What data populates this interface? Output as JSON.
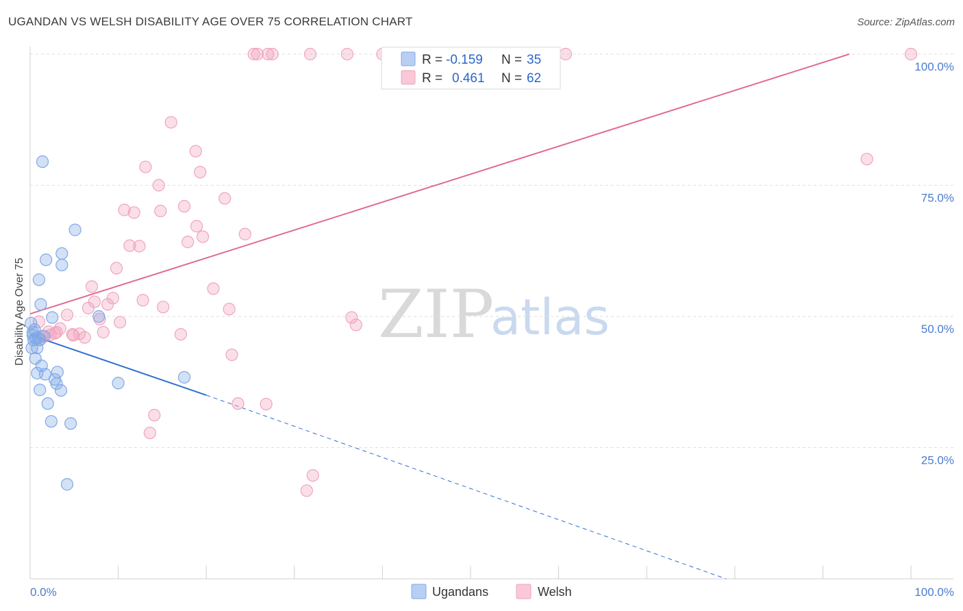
{
  "header": {
    "title": "UGANDAN VS WELSH DISABILITY AGE OVER 75 CORRELATION CHART",
    "source": "Source: ZipAtlas.com"
  },
  "colors": {
    "ugandans": "#7fa8e6",
    "ugandans_line": "#2f6fd1",
    "welsh": "#f1a3bd",
    "welsh_line": "#e16a94",
    "tick_text": "#4a7bd0",
    "grid": "#dedede"
  },
  "watermark": {
    "zip": "ZIP",
    "atlas": "atlas"
  },
  "stats": {
    "ugandans": {
      "r_label": "R =",
      "r_value": "-0.159",
      "n_label": "N =",
      "n_value": "35"
    },
    "welsh": {
      "r_label": "R =",
      "r_value": "0.461",
      "n_label": "N =",
      "n_value": "62"
    }
  },
  "legend": {
    "ugandans": "Ugandans",
    "welsh": "Welsh"
  },
  "chart_data": {
    "type": "scatter",
    "title": "UGANDAN VS WELSH DISABILITY AGE OVER 75 CORRELATION CHART",
    "xlabel": "",
    "ylabel": "Disability Age Over 75",
    "xlim": [
      0,
      100
    ],
    "ylim": [
      0,
      100
    ],
    "x_tick_labels": [
      "0.0%",
      "100.0%"
    ],
    "y_tick_labels": [
      "100.0%",
      "75.0%",
      "50.0%",
      "25.0%"
    ],
    "y_ticks": [
      100,
      75,
      50,
      25
    ],
    "grid": true,
    "series": [
      {
        "name": "Ugandans",
        "r": -0.159,
        "n": 35,
        "trend": {
          "x0": 0,
          "y0": 46.5,
          "x1": 20,
          "y1": 35.0,
          "dashed_to_x": 79,
          "dashed_to_y": 0
        },
        "points": [
          [
            1.4,
            79.5
          ],
          [
            5.1,
            66.5
          ],
          [
            3.6,
            62.0
          ],
          [
            1.8,
            60.8
          ],
          [
            3.6,
            59.8
          ],
          [
            1.0,
            57.0
          ],
          [
            1.2,
            52.3
          ],
          [
            2.5,
            49.8
          ],
          [
            7.8,
            50.0
          ],
          [
            0.1,
            48.7
          ],
          [
            0.5,
            47.5
          ],
          [
            0.3,
            46.4
          ],
          [
            0.6,
            45.8
          ],
          [
            1.1,
            45.6
          ],
          [
            0.9,
            45.9
          ],
          [
            0.2,
            44.0
          ],
          [
            0.8,
            44.0
          ],
          [
            0.6,
            42.0
          ],
          [
            1.3,
            40.6
          ],
          [
            0.8,
            39.2
          ],
          [
            1.7,
            39.0
          ],
          [
            3.1,
            39.4
          ],
          [
            2.8,
            38.0
          ],
          [
            3.0,
            37.2
          ],
          [
            17.5,
            38.4
          ],
          [
            10.0,
            37.3
          ],
          [
            1.1,
            36.0
          ],
          [
            3.5,
            35.9
          ],
          [
            2.0,
            33.4
          ],
          [
            2.4,
            30.0
          ],
          [
            4.6,
            29.6
          ],
          [
            4.2,
            18.0
          ],
          [
            0.3,
            47.0
          ],
          [
            1.6,
            46.2
          ],
          [
            0.4,
            45.5
          ]
        ]
      },
      {
        "name": "Welsh",
        "r": 0.461,
        "n": 62,
        "trend": {
          "x0": 0,
          "y0": 50.5,
          "x1": 93,
          "y1": 100
        },
        "points": [
          [
            25.4,
            100
          ],
          [
            25.8,
            100
          ],
          [
            27.0,
            100
          ],
          [
            27.5,
            100
          ],
          [
            31.8,
            100
          ],
          [
            36.0,
            100
          ],
          [
            40.0,
            100
          ],
          [
            60.8,
            100
          ],
          [
            100.0,
            100
          ],
          [
            16.0,
            87.0
          ],
          [
            18.8,
            81.5
          ],
          [
            95.0,
            80.0
          ],
          [
            13.1,
            78.5
          ],
          [
            19.3,
            77.5
          ],
          [
            14.6,
            75.0
          ],
          [
            22.1,
            72.5
          ],
          [
            17.5,
            71.0
          ],
          [
            10.7,
            70.3
          ],
          [
            11.8,
            69.8
          ],
          [
            14.8,
            70.1
          ],
          [
            18.9,
            67.2
          ],
          [
            24.4,
            65.7
          ],
          [
            19.6,
            65.2
          ],
          [
            17.9,
            64.2
          ],
          [
            11.3,
            63.5
          ],
          [
            12.4,
            63.4
          ],
          [
            9.8,
            59.2
          ],
          [
            7.0,
            55.7
          ],
          [
            20.8,
            55.3
          ],
          [
            9.4,
            53.5
          ],
          [
            12.8,
            53.1
          ],
          [
            7.3,
            52.8
          ],
          [
            8.8,
            52.3
          ],
          [
            6.6,
            51.6
          ],
          [
            15.1,
            51.8
          ],
          [
            22.6,
            51.4
          ],
          [
            4.2,
            50.3
          ],
          [
            36.5,
            49.8
          ],
          [
            7.9,
            49.5
          ],
          [
            10.2,
            48.9
          ],
          [
            37.0,
            48.4
          ],
          [
            3.4,
            47.7
          ],
          [
            2.1,
            47.1
          ],
          [
            2.8,
            46.8
          ],
          [
            3.0,
            47.0
          ],
          [
            4.8,
            46.6
          ],
          [
            5.6,
            46.7
          ],
          [
            8.3,
            47.0
          ],
          [
            17.1,
            46.6
          ],
          [
            1.4,
            46.3
          ],
          [
            2.3,
            46.5
          ],
          [
            4.9,
            46.4
          ],
          [
            6.2,
            46.0
          ],
          [
            1.1,
            45.5
          ],
          [
            22.9,
            42.7
          ],
          [
            23.6,
            33.4
          ],
          [
            26.8,
            33.3
          ],
          [
            14.1,
            31.2
          ],
          [
            13.6,
            27.8
          ],
          [
            32.1,
            19.7
          ],
          [
            31.4,
            16.8
          ],
          [
            1.0,
            49.0
          ]
        ]
      }
    ]
  }
}
